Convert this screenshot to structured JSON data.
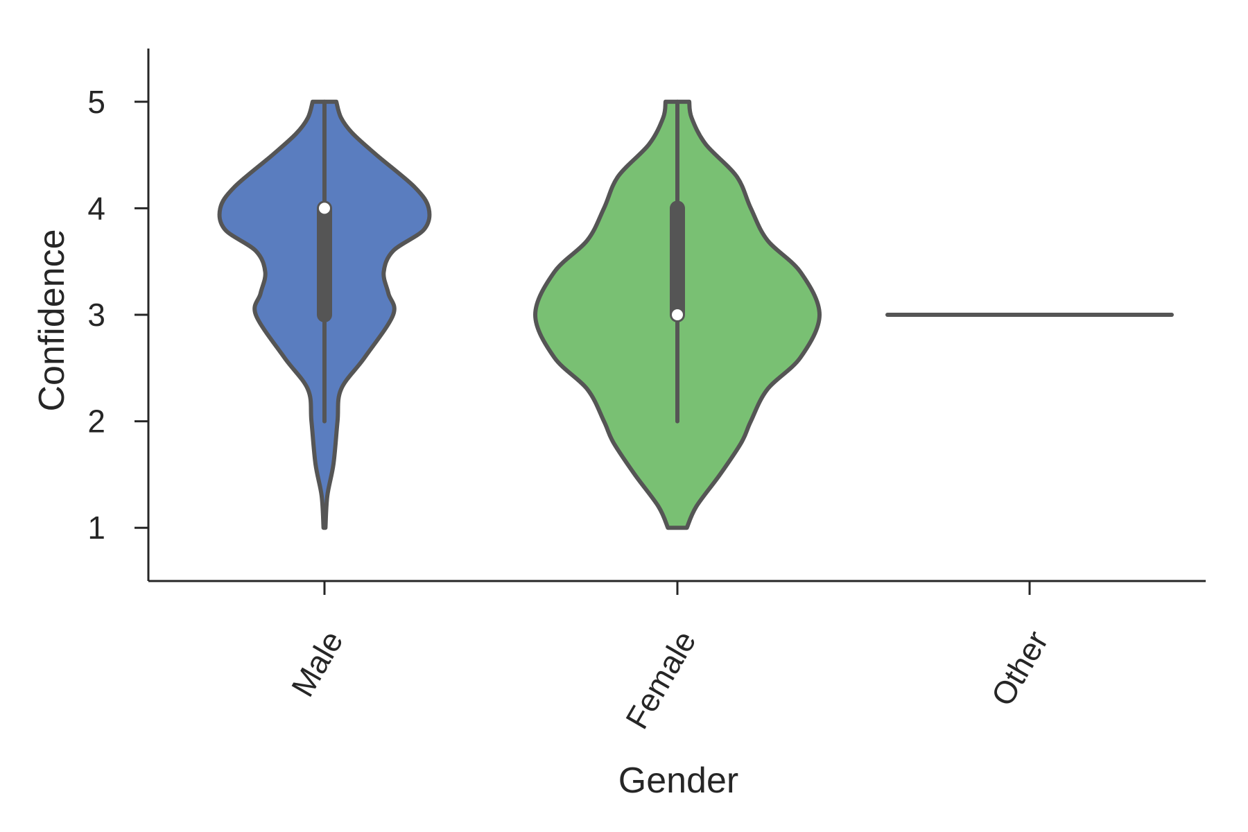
{
  "chart_data": {
    "type": "violin",
    "xlabel": "Gender",
    "ylabel": "Confidence",
    "categories": [
      "Male",
      "Female",
      "Other"
    ],
    "ylim": [
      0.5,
      5.5
    ],
    "yticks": [
      1,
      2,
      3,
      4,
      5
    ],
    "grid": false,
    "legend": "none",
    "x_tick_rotation_deg": -60,
    "series": [
      {
        "category": "Male",
        "color": "#5a7dbf",
        "min": 2,
        "q1": 3,
        "median": 4,
        "q3": 4,
        "max": 5,
        "density_range": [
          1,
          5
        ],
        "density": [
          [
            1.0,
            0.004
          ],
          [
            1.3,
            0.012
          ],
          [
            1.6,
            0.038
          ],
          [
            2.0,
            0.055
          ],
          [
            2.3,
            0.07
          ],
          [
            2.6,
            0.17
          ],
          [
            3.0,
            0.29
          ],
          [
            3.2,
            0.27
          ],
          [
            3.4,
            0.25
          ],
          [
            3.6,
            0.29
          ],
          [
            3.8,
            0.42
          ],
          [
            4.0,
            0.44
          ],
          [
            4.2,
            0.38
          ],
          [
            4.5,
            0.22
          ],
          [
            4.7,
            0.12
          ],
          [
            4.85,
            0.07
          ],
          [
            5.0,
            0.05
          ]
        ]
      },
      {
        "category": "Female",
        "color": "#79c073",
        "min": 2,
        "q1": 3,
        "median": 3,
        "q3": 4,
        "max": 5,
        "density_range": [
          1,
          5
        ],
        "density": [
          [
            1.0,
            0.04
          ],
          [
            1.2,
            0.08
          ],
          [
            1.5,
            0.18
          ],
          [
            1.8,
            0.27
          ],
          [
            2.0,
            0.31
          ],
          [
            2.3,
            0.38
          ],
          [
            2.6,
            0.52
          ],
          [
            3.0,
            0.6
          ],
          [
            3.4,
            0.52
          ],
          [
            3.7,
            0.38
          ],
          [
            4.0,
            0.31
          ],
          [
            4.3,
            0.25
          ],
          [
            4.6,
            0.12
          ],
          [
            4.85,
            0.06
          ],
          [
            5.0,
            0.05
          ]
        ]
      },
      {
        "category": "Other",
        "color": "#555555",
        "single_value": 3
      }
    ],
    "palette": {
      "axis": "#262626",
      "outline": "#555555",
      "median_marker": "#ffffff"
    }
  }
}
